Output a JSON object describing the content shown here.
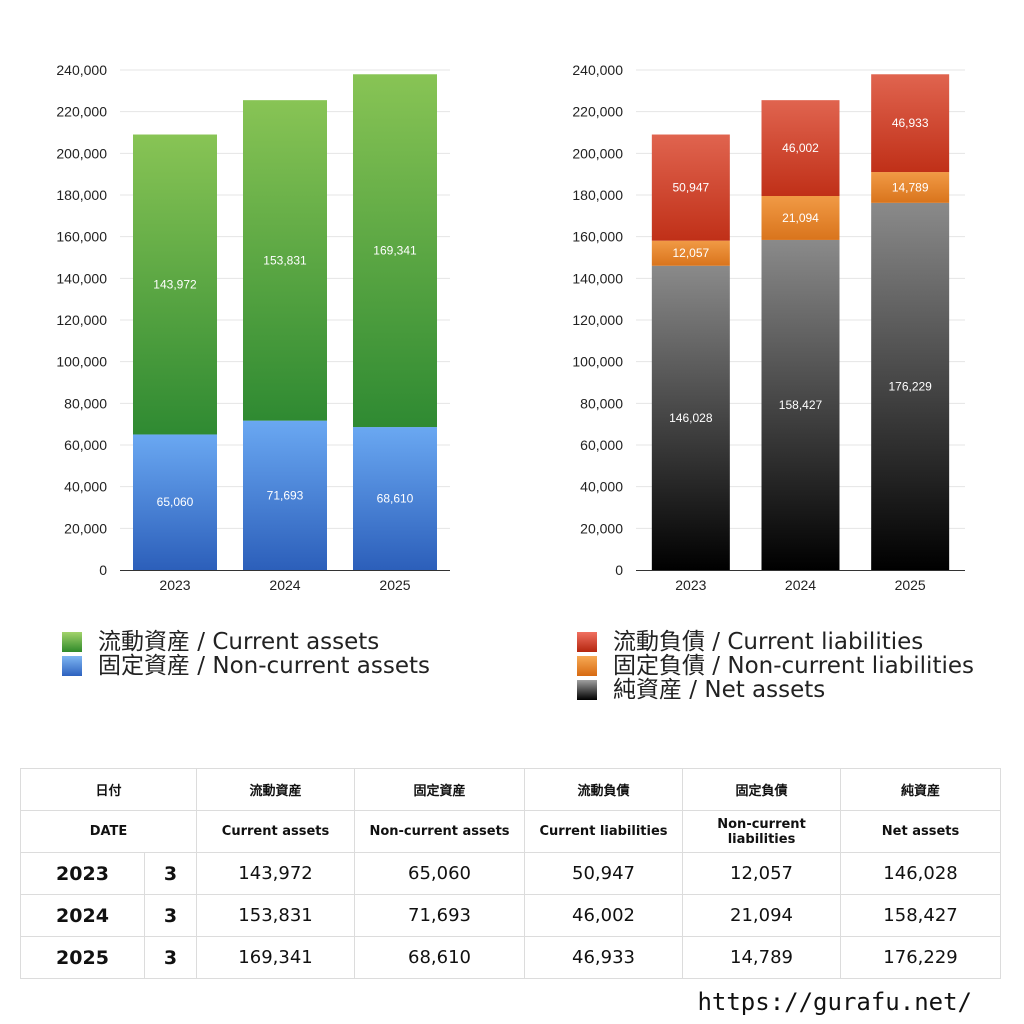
{
  "chart_data": [
    {
      "type": "bar",
      "stacked": true,
      "categories": [
        "2023",
        "2024",
        "2025"
      ],
      "ylim": [
        0,
        240000
      ],
      "yticks": [
        "0",
        "20,000",
        "40,000",
        "60,000",
        "80,000",
        "100,000",
        "120,000",
        "140,000",
        "160,000",
        "180,000",
        "200,000",
        "220,000",
        "240,000"
      ],
      "grid": true,
      "series": [
        {
          "name": "固定資産 / Non-current assets",
          "color": "#4a86e0",
          "values": [
            65060,
            71693,
            68610
          ],
          "labels": [
            "65,060",
            "71,693",
            "68,610"
          ]
        },
        {
          "name": "流動資産 / Current assets",
          "color": "#55a840",
          "values": [
            143972,
            153831,
            169341
          ],
          "labels": [
            "143,972",
            "153,831",
            "169,341"
          ]
        }
      ]
    },
    {
      "type": "bar",
      "stacked": true,
      "categories": [
        "2023",
        "2024",
        "2025"
      ],
      "ylim": [
        0,
        240000
      ],
      "yticks": [
        "0",
        "20,000",
        "40,000",
        "60,000",
        "80,000",
        "100,000",
        "120,000",
        "140,000",
        "160,000",
        "180,000",
        "200,000",
        "220,000",
        "240,000"
      ],
      "grid": true,
      "series": [
        {
          "name": "純資産 / Net assets",
          "color": "#333333",
          "values": [
            146028,
            158427,
            176229
          ],
          "labels": [
            "146,028",
            "158,427",
            "176,229"
          ]
        },
        {
          "name": "固定負債 / Non-current liabilities",
          "color": "#e8862e",
          "values": [
            12057,
            21094,
            14789
          ],
          "labels": [
            "12,057",
            "21,094",
            "14,789"
          ]
        },
        {
          "name": "流動負債 / Current liabilities",
          "color": "#d44a35",
          "values": [
            50947,
            46002,
            46933
          ],
          "labels": [
            "50,947",
            "46,002",
            "46,933"
          ]
        }
      ]
    }
  ],
  "legend_left": [
    "流動資産 / Current assets",
    "固定資産 / Non-current assets"
  ],
  "legend_right": [
    "流動負債 / Current liabilities",
    "固定負債 / Non-current liabilities",
    "純資産 / Net assets"
  ],
  "table": {
    "headers_jp": [
      "日付",
      "流動資産",
      "固定資産",
      "流動負債",
      "固定負債",
      "純資産"
    ],
    "headers_en": [
      "DATE",
      "Current assets",
      "Non-current assets",
      "Current liabilities",
      "Non-current liabilities",
      "Net assets"
    ],
    "rows": [
      {
        "year": "2023",
        "month": "3",
        "values": [
          "143,972",
          "65,060",
          "50,947",
          "12,057",
          "146,028"
        ]
      },
      {
        "year": "2024",
        "month": "3",
        "values": [
          "153,831",
          "71,693",
          "46,002",
          "21,094",
          "158,427"
        ]
      },
      {
        "year": "2025",
        "month": "3",
        "values": [
          "169,341",
          "68,610",
          "46,933",
          "14,789",
          "176,229"
        ]
      }
    ]
  },
  "footer_url": "https://gurafu.net/"
}
